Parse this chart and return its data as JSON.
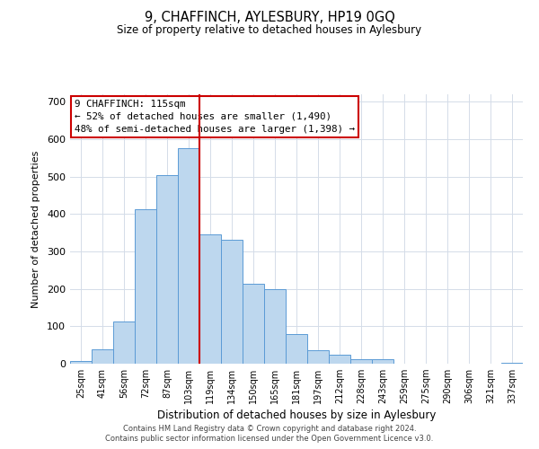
{
  "title": "9, CHAFFINCH, AYLESBURY, HP19 0GQ",
  "subtitle": "Size of property relative to detached houses in Aylesbury",
  "xlabel": "Distribution of detached houses by size in Aylesbury",
  "ylabel": "Number of detached properties",
  "bar_labels": [
    "25sqm",
    "41sqm",
    "56sqm",
    "72sqm",
    "87sqm",
    "103sqm",
    "119sqm",
    "134sqm",
    "150sqm",
    "165sqm",
    "181sqm",
    "197sqm",
    "212sqm",
    "228sqm",
    "243sqm",
    "259sqm",
    "275sqm",
    "290sqm",
    "306sqm",
    "321sqm",
    "337sqm"
  ],
  "bar_values": [
    8,
    38,
    112,
    414,
    505,
    575,
    345,
    332,
    213,
    200,
    80,
    37,
    25,
    12,
    13,
    0,
    0,
    0,
    0,
    0,
    2
  ],
  "bar_color": "#bdd7ee",
  "bar_edge_color": "#5b9bd5",
  "vline_x": 5.5,
  "vline_color": "#cc0000",
  "annotation_title": "9 CHAFFINCH: 115sqm",
  "annotation_line1": "← 52% of detached houses are smaller (1,490)",
  "annotation_line2": "48% of semi-detached houses are larger (1,398) →",
  "annotation_box_color": "#ffffff",
  "annotation_box_edge": "#cc0000",
  "ylim": [
    0,
    720
  ],
  "yticks": [
    0,
    100,
    200,
    300,
    400,
    500,
    600,
    700
  ],
  "footer1": "Contains HM Land Registry data © Crown copyright and database right 2024.",
  "footer2": "Contains public sector information licensed under the Open Government Licence v3.0.",
  "background_color": "#ffffff",
  "grid_color": "#d4dce8"
}
